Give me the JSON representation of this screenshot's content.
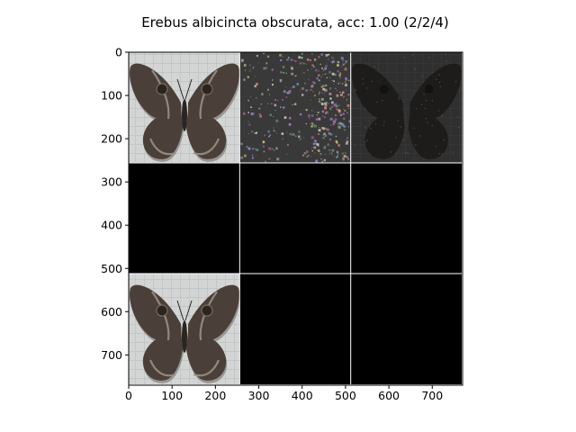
{
  "chart_data": {
    "type": "image-grid",
    "title": "Erebus albicincta obscurata, acc: 1.00 (2/2/4)",
    "xlim": [
      0,
      770
    ],
    "ylim": [
      770,
      0
    ],
    "x_ticks": [
      0,
      100,
      200,
      300,
      400,
      500,
      600,
      700
    ],
    "y_ticks": [
      0,
      100,
      200,
      300,
      400,
      500,
      600,
      700
    ],
    "grid": {
      "rows": 3,
      "cols": 3,
      "cell_size": 256,
      "divider_color": "#ffffff"
    },
    "cells": [
      {
        "row": 0,
        "col": 0,
        "content": "butterfly-photo"
      },
      {
        "row": 0,
        "col": 1,
        "content": "noise-map"
      },
      {
        "row": 0,
        "col": 2,
        "content": "dark-butterfly"
      },
      {
        "row": 1,
        "col": 0,
        "content": "black"
      },
      {
        "row": 1,
        "col": 1,
        "content": "black"
      },
      {
        "row": 1,
        "col": 2,
        "content": "black"
      },
      {
        "row": 2,
        "col": 0,
        "content": "butterfly-photo"
      },
      {
        "row": 2,
        "col": 1,
        "content": "black"
      },
      {
        "row": 2,
        "col": 2,
        "content": "black"
      }
    ],
    "colors": {
      "wing": "#4a4039",
      "wing_dark": "#2b2521",
      "wing_band": "#9a8f84",
      "background_paper": "#cdcfcf",
      "black": "#000000"
    }
  }
}
